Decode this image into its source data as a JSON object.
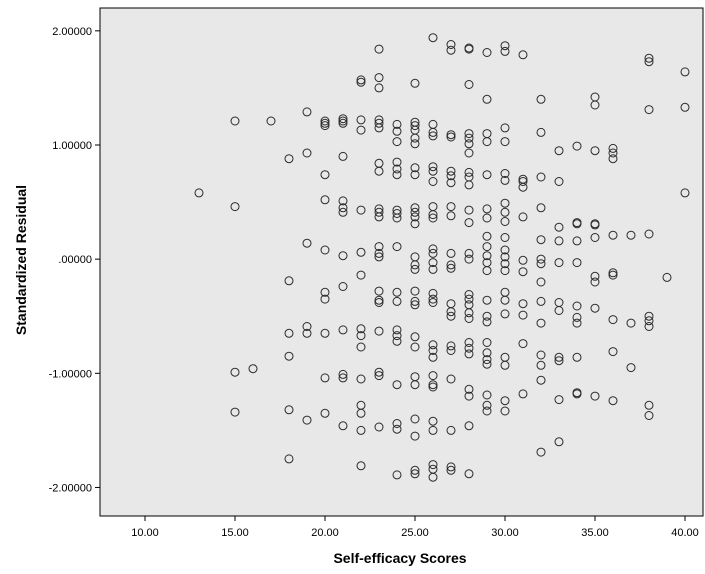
{
  "chart_data": {
    "type": "scatter",
    "title": "",
    "xlabel": "Self-efficacy Scores",
    "ylabel": "Standardized Residual",
    "xlim": [
      7.5,
      41
    ],
    "ylim": [
      -2.25,
      2.2
    ],
    "xticks": [
      "10.00",
      "15.00",
      "20.00",
      "25.00",
      "30.00",
      "35.00",
      "40.00"
    ],
    "yticks": [
      "2.00000",
      "1.00000",
      ".00000",
      "-1.00000",
      "-2.00000"
    ],
    "xtick_values": [
      10,
      15,
      20,
      25,
      30,
      35,
      40
    ],
    "ytick_values": [
      2,
      1,
      0,
      -1,
      -2
    ],
    "grid": false,
    "marker": "open-circle",
    "colors": {
      "plot_bg": "#e8e8e8",
      "marker": "#2b2b2b",
      "axis": "#000000"
    },
    "points": [
      [
        13,
        0.58
      ],
      [
        15,
        1.21
      ],
      [
        15,
        0.46
      ],
      [
        15,
        -0.99
      ],
      [
        15,
        -1.34
      ],
      [
        16,
        -0.96
      ],
      [
        17,
        1.21
      ],
      [
        18,
        0.88
      ],
      [
        18,
        -0.19
      ],
      [
        18,
        -0.65
      ],
      [
        18,
        -0.85
      ],
      [
        18,
        -1.32
      ],
      [
        18,
        -1.75
      ],
      [
        19,
        1.29
      ],
      [
        19,
        0.93
      ],
      [
        19,
        0.14
      ],
      [
        19,
        -0.59
      ],
      [
        19,
        -0.65
      ],
      [
        19,
        -1.41
      ],
      [
        20,
        1.21
      ],
      [
        20,
        1.19
      ],
      [
        20,
        1.17
      ],
      [
        20,
        0.74
      ],
      [
        20,
        0.52
      ],
      [
        20,
        0.08
      ],
      [
        20,
        -0.29
      ],
      [
        20,
        -0.35
      ],
      [
        20,
        -0.65
      ],
      [
        20,
        -1.04
      ],
      [
        20,
        -1.35
      ],
      [
        21,
        1.23
      ],
      [
        21,
        1.21
      ],
      [
        21,
        1.19
      ],
      [
        21,
        0.9
      ],
      [
        21,
        0.51
      ],
      [
        21,
        0.45
      ],
      [
        21,
        0.41
      ],
      [
        21,
        0.03
      ],
      [
        21,
        -0.24
      ],
      [
        21,
        -0.62
      ],
      [
        21,
        -1.01
      ],
      [
        21,
        -1.04
      ],
      [
        21,
        -1.46
      ],
      [
        22,
        1.57
      ],
      [
        22,
        1.55
      ],
      [
        22,
        1.22
      ],
      [
        22,
        1.13
      ],
      [
        22,
        0.43
      ],
      [
        22,
        0.06
      ],
      [
        22,
        -0.14
      ],
      [
        22,
        -0.61
      ],
      [
        22,
        -0.67
      ],
      [
        22,
        -0.77
      ],
      [
        22,
        -1.05
      ],
      [
        22,
        -1.28
      ],
      [
        22,
        -1.35
      ],
      [
        22,
        -1.5
      ],
      [
        22,
        -1.81
      ],
      [
        23,
        1.84
      ],
      [
        23,
        1.59
      ],
      [
        23,
        1.5
      ],
      [
        23,
        1.22
      ],
      [
        23,
        1.19
      ],
      [
        23,
        1.15
      ],
      [
        23,
        0.84
      ],
      [
        23,
        0.77
      ],
      [
        23,
        0.44
      ],
      [
        23,
        0.41
      ],
      [
        23,
        0.37
      ],
      [
        23,
        0.11
      ],
      [
        23,
        0.05
      ],
      [
        23,
        0.02
      ],
      [
        23,
        -0.28
      ],
      [
        23,
        -0.36
      ],
      [
        23,
        -0.38
      ],
      [
        23,
        -0.63
      ],
      [
        23,
        -0.99
      ],
      [
        23,
        -1.02
      ],
      [
        23,
        -1.47
      ],
      [
        24,
        1.18
      ],
      [
        24,
        1.12
      ],
      [
        24,
        1.03
      ],
      [
        24,
        0.85
      ],
      [
        24,
        0.79
      ],
      [
        24,
        0.74
      ],
      [
        24,
        0.43
      ],
      [
        24,
        0.4
      ],
      [
        24,
        0.36
      ],
      [
        24,
        0.11
      ],
      [
        24,
        -0.29
      ],
      [
        24,
        -0.37
      ],
      [
        24,
        -0.62
      ],
      [
        24,
        -0.67
      ],
      [
        24,
        -0.72
      ],
      [
        24,
        -1.1
      ],
      [
        24,
        -1.44
      ],
      [
        24,
        -1.49
      ],
      [
        24,
        -1.89
      ],
      [
        25,
        1.54
      ],
      [
        25,
        1.2
      ],
      [
        25,
        1.17
      ],
      [
        25,
        1.13
      ],
      [
        25,
        1.06
      ],
      [
        25,
        1.01
      ],
      [
        25,
        0.8
      ],
      [
        25,
        0.74
      ],
      [
        25,
        0.45
      ],
      [
        25,
        0.41
      ],
      [
        25,
        0.37
      ],
      [
        25,
        0.31
      ],
      [
        25,
        0.02
      ],
      [
        25,
        -0.05
      ],
      [
        25,
        -0.09
      ],
      [
        25,
        -0.28
      ],
      [
        25,
        -0.37
      ],
      [
        25,
        -0.4
      ],
      [
        25,
        -0.68
      ],
      [
        25,
        -0.77
      ],
      [
        25,
        -1.03
      ],
      [
        25,
        -1.1
      ],
      [
        25,
        -1.4
      ],
      [
        25,
        -1.55
      ],
      [
        25,
        -1.85
      ],
      [
        25,
        -1.88
      ],
      [
        26,
        1.94
      ],
      [
        26,
        1.18
      ],
      [
        26,
        1.11
      ],
      [
        26,
        1.08
      ],
      [
        26,
        0.81
      ],
      [
        26,
        0.77
      ],
      [
        26,
        0.68
      ],
      [
        26,
        0.46
      ],
      [
        26,
        0.39
      ],
      [
        26,
        0.36
      ],
      [
        26,
        0.09
      ],
      [
        26,
        0.05
      ],
      [
        26,
        -0.03
      ],
      [
        26,
        -0.09
      ],
      [
        26,
        -0.3
      ],
      [
        26,
        -0.35
      ],
      [
        26,
        -0.38
      ],
      [
        26,
        -0.75
      ],
      [
        26,
        -0.8
      ],
      [
        26,
        -0.86
      ],
      [
        26,
        -1.02
      ],
      [
        26,
        -1.1
      ],
      [
        26,
        -1.12
      ],
      [
        26,
        -1.42
      ],
      [
        26,
        -1.5
      ],
      [
        26,
        -1.8
      ],
      [
        26,
        -1.84
      ],
      [
        26,
        -1.91
      ],
      [
        27,
        1.88
      ],
      [
        27,
        1.83
      ],
      [
        27,
        1.09
      ],
      [
        27,
        1.07
      ],
      [
        27,
        0.77
      ],
      [
        27,
        0.73
      ],
      [
        27,
        0.67
      ],
      [
        27,
        0.46
      ],
      [
        27,
        0.38
      ],
      [
        27,
        0.05
      ],
      [
        27,
        -0.05
      ],
      [
        27,
        -0.08
      ],
      [
        27,
        -0.39
      ],
      [
        27,
        -0.46
      ],
      [
        27,
        -0.5
      ],
      [
        27,
        -0.76
      ],
      [
        27,
        -0.8
      ],
      [
        27,
        -1.05
      ],
      [
        27,
        -1.5
      ],
      [
        27,
        -1.82
      ],
      [
        27,
        -1.85
      ],
      [
        28,
        1.85
      ],
      [
        28,
        1.84
      ],
      [
        28,
        1.53
      ],
      [
        28,
        1.1
      ],
      [
        28,
        1.06
      ],
      [
        28,
        1.01
      ],
      [
        28,
        0.93
      ],
      [
        28,
        0.76
      ],
      [
        28,
        0.72
      ],
      [
        28,
        0.65
      ],
      [
        28,
        0.43
      ],
      [
        28,
        0.32
      ],
      [
        28,
        0.05
      ],
      [
        28,
        0.0
      ],
      [
        28,
        -0.31
      ],
      [
        28,
        -0.35
      ],
      [
        28,
        -0.4
      ],
      [
        28,
        -0.47
      ],
      [
        28,
        -0.52
      ],
      [
        28,
        -0.73
      ],
      [
        28,
        -0.78
      ],
      [
        28,
        -0.83
      ],
      [
        28,
        -1.14
      ],
      [
        28,
        -1.2
      ],
      [
        28,
        -1.46
      ],
      [
        28,
        -1.88
      ],
      [
        29,
        1.81
      ],
      [
        29,
        1.4
      ],
      [
        29,
        1.1
      ],
      [
        29,
        1.03
      ],
      [
        29,
        0.74
      ],
      [
        29,
        0.44
      ],
      [
        29,
        0.36
      ],
      [
        29,
        0.2
      ],
      [
        29,
        0.11
      ],
      [
        29,
        0.03
      ],
      [
        29,
        -0.03
      ],
      [
        29,
        -0.1
      ],
      [
        29,
        -0.36
      ],
      [
        29,
        -0.5
      ],
      [
        29,
        -0.55
      ],
      [
        29,
        -0.73
      ],
      [
        29,
        -0.82
      ],
      [
        29,
        -0.88
      ],
      [
        29,
        -0.92
      ],
      [
        29,
        -1.19
      ],
      [
        29,
        -1.28
      ],
      [
        29,
        -1.33
      ],
      [
        30,
        1.87
      ],
      [
        30,
        1.82
      ],
      [
        30,
        1.15
      ],
      [
        30,
        1.03
      ],
      [
        30,
        0.75
      ],
      [
        30,
        0.69
      ],
      [
        30,
        0.49
      ],
      [
        30,
        0.41
      ],
      [
        30,
        0.33
      ],
      [
        30,
        0.19
      ],
      [
        30,
        0.08
      ],
      [
        30,
        0.02
      ],
      [
        30,
        -0.04
      ],
      [
        30,
        -0.1
      ],
      [
        30,
        -0.29
      ],
      [
        30,
        -0.36
      ],
      [
        30,
        -0.48
      ],
      [
        30,
        -0.86
      ],
      [
        30,
        -0.93
      ],
      [
        30,
        -1.24
      ],
      [
        30,
        -1.33
      ],
      [
        31,
        1.79
      ],
      [
        31,
        0.7
      ],
      [
        31,
        0.68
      ],
      [
        31,
        0.63
      ],
      [
        31,
        0.37
      ],
      [
        31,
        -0.01
      ],
      [
        31,
        -0.11
      ],
      [
        31,
        -0.39
      ],
      [
        31,
        -0.49
      ],
      [
        31,
        -0.74
      ],
      [
        31,
        -1.18
      ],
      [
        32,
        1.4
      ],
      [
        32,
        1.11
      ],
      [
        32,
        0.72
      ],
      [
        32,
        0.45
      ],
      [
        32,
        0.17
      ],
      [
        32,
        0.0
      ],
      [
        32,
        -0.04
      ],
      [
        32,
        -0.2
      ],
      [
        32,
        -0.37
      ],
      [
        32,
        -0.56
      ],
      [
        32,
        -0.84
      ],
      [
        32,
        -0.93
      ],
      [
        32,
        -1.06
      ],
      [
        32,
        -1.69
      ],
      [
        33,
        0.95
      ],
      [
        33,
        0.68
      ],
      [
        33,
        0.28
      ],
      [
        33,
        0.16
      ],
      [
        33,
        -0.03
      ],
      [
        33,
        -0.38
      ],
      [
        33,
        -0.45
      ],
      [
        33,
        -0.86
      ],
      [
        33,
        -0.89
      ],
      [
        33,
        -1.23
      ],
      [
        33,
        -1.6
      ],
      [
        34,
        0.99
      ],
      [
        34,
        0.32
      ],
      [
        34,
        0.31
      ],
      [
        34,
        0.16
      ],
      [
        34,
        -0.03
      ],
      [
        34,
        -0.41
      ],
      [
        34,
        -0.51
      ],
      [
        34,
        -0.56
      ],
      [
        34,
        -0.86
      ],
      [
        34,
        -1.17
      ],
      [
        34,
        -1.18
      ],
      [
        35,
        1.42
      ],
      [
        35,
        1.35
      ],
      [
        35,
        0.95
      ],
      [
        35,
        0.31
      ],
      [
        35,
        0.3
      ],
      [
        35,
        0.19
      ],
      [
        35,
        -0.15
      ],
      [
        35,
        -0.2
      ],
      [
        35,
        -0.43
      ],
      [
        35,
        -1.2
      ],
      [
        36,
        0.97
      ],
      [
        36,
        0.93
      ],
      [
        36,
        0.88
      ],
      [
        36,
        0.21
      ],
      [
        36,
        -0.12
      ],
      [
        36,
        -0.14
      ],
      [
        36,
        -0.53
      ],
      [
        36,
        -0.81
      ],
      [
        36,
        -1.24
      ],
      [
        37,
        0.21
      ],
      [
        37,
        -0.56
      ],
      [
        37,
        -0.95
      ],
      [
        38,
        1.76
      ],
      [
        38,
        1.73
      ],
      [
        38,
        1.31
      ],
      [
        38,
        0.22
      ],
      [
        38,
        -0.5
      ],
      [
        38,
        -0.54
      ],
      [
        38,
        -0.59
      ],
      [
        38,
        -1.28
      ],
      [
        38,
        -1.37
      ],
      [
        39,
        -0.16
      ],
      [
        40,
        1.64
      ],
      [
        40,
        1.33
      ],
      [
        40,
        0.58
      ]
    ]
  }
}
